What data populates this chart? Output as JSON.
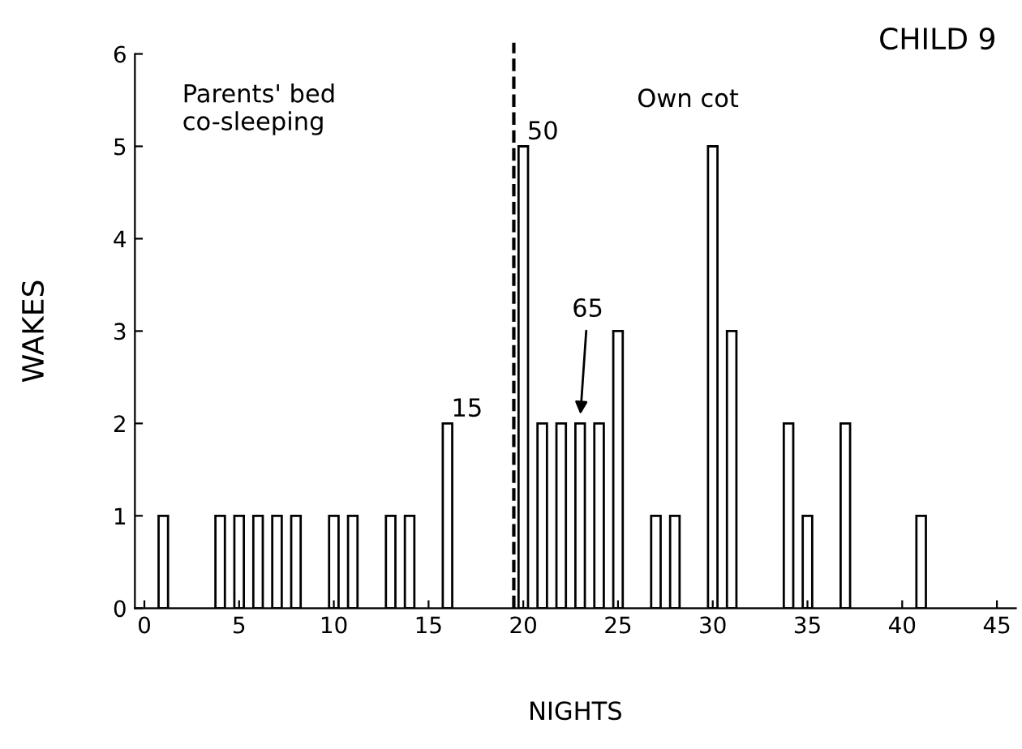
{
  "chart_data": {
    "type": "bar",
    "title": "CHILD 9",
    "xlabel": "NIGHTS",
    "ylabel": "WAKES",
    "x": [
      1,
      4,
      5,
      6,
      7,
      8,
      10,
      11,
      13,
      14,
      16,
      20,
      21,
      22,
      23,
      24,
      25,
      27,
      28,
      30,
      31,
      34,
      35,
      37,
      41
    ],
    "values": [
      1,
      1,
      1,
      1,
      1,
      1,
      1,
      1,
      1,
      1,
      2,
      5,
      2,
      2,
      2,
      2,
      3,
      1,
      1,
      5,
      3,
      2,
      1,
      2,
      1
    ],
    "color": "#ffffff",
    "xlim": [
      -0.5,
      46
    ],
    "ylim": [
      0,
      6
    ],
    "xticks": [
      0,
      5,
      10,
      15,
      20,
      25,
      30,
      35,
      40,
      45
    ],
    "yticks": [
      0,
      1,
      2,
      3,
      4,
      5,
      6
    ],
    "grid": false,
    "ref_lines": [
      {
        "axis": "x",
        "value": 19.5,
        "line_style": "dashed",
        "color": "#000000"
      }
    ],
    "annotations": [
      {
        "text": "15",
        "x": 16,
        "y": 2
      },
      {
        "text": "50",
        "x": 20,
        "y": 5
      },
      {
        "text": "65",
        "x": 23,
        "y": 2
      },
      "Parents' bed\nco-sleeping",
      "Own cot"
    ]
  }
}
